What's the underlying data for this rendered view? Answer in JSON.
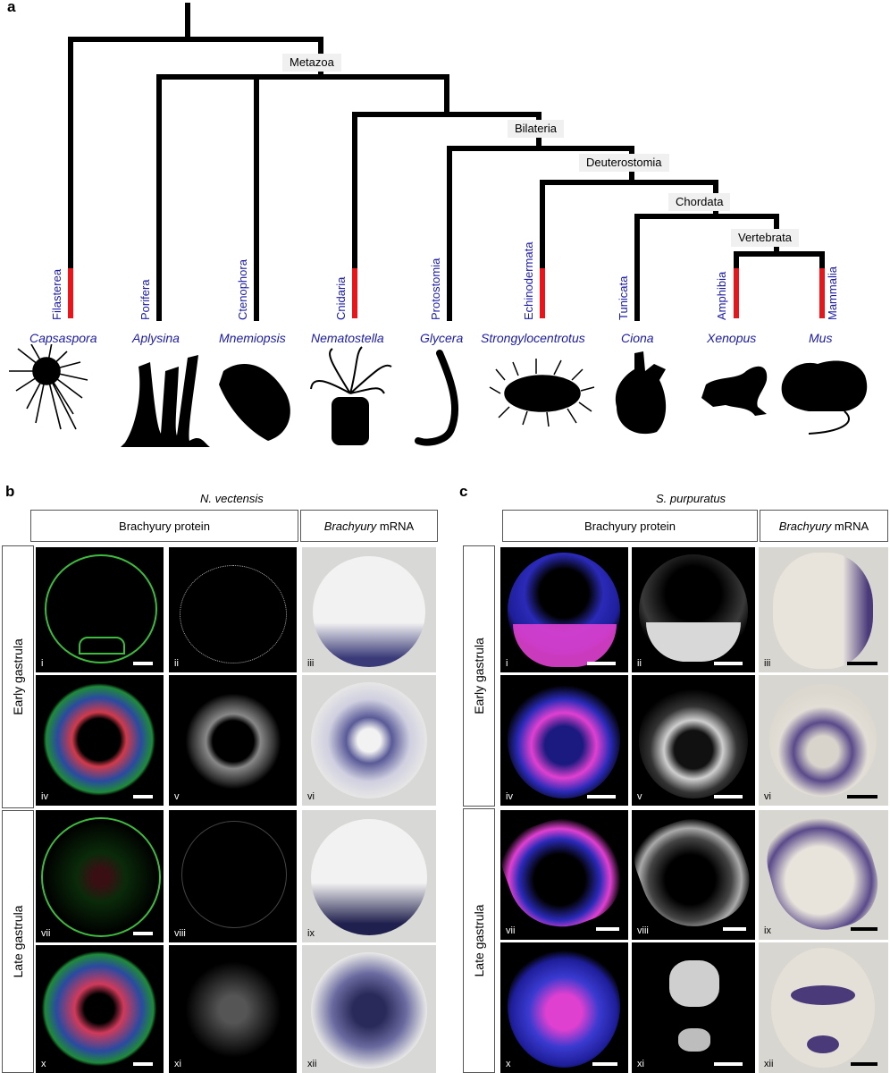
{
  "panel_a": {
    "letter": "a",
    "clades": [
      "Metazoa",
      "Bilateria",
      "Deuterostomia",
      "Chordata",
      "Vertebrata"
    ],
    "taxa": [
      {
        "group": "Filasterea",
        "genus": "Capsaspora",
        "icon": "capsaspora-silhouette"
      },
      {
        "group": "Porifera",
        "genus": "Aplysina",
        "icon": "sponge-silhouette"
      },
      {
        "group": "Ctenophora",
        "genus": "Mnemiopsis",
        "icon": "comb-jelly-silhouette"
      },
      {
        "group": "Cnidaria",
        "genus": "Nematostella",
        "icon": "sea-anemone-silhouette"
      },
      {
        "group": "Protostomia",
        "genus": "Glycera",
        "icon": "worm-silhouette"
      },
      {
        "group": "Echinodermata",
        "genus": "Strongylocentrotus",
        "icon": "sea-urchin-silhouette"
      },
      {
        "group": "Tunicata",
        "genus": "Ciona",
        "icon": "sea-squirt-silhouette"
      },
      {
        "group": "Amphibia",
        "genus": "Xenopus",
        "icon": "frog-silhouette"
      },
      {
        "group": "Mammalia",
        "genus": "Mus",
        "icon": "mouse-silhouette"
      }
    ]
  },
  "panel_b": {
    "letter": "b",
    "species": "N. vectensis",
    "protein_header": "Brachyury protein",
    "mrna_header_italic": "Brachyury",
    "mrna_header_rest": " mRNA",
    "row_groups": [
      "Early gastrula",
      "Late gastrula"
    ],
    "numerals": [
      "i",
      "ii",
      "iii",
      "iv",
      "v",
      "vi",
      "vii",
      "viii",
      "ix",
      "x",
      "xi",
      "xii"
    ]
  },
  "panel_c": {
    "letter": "c",
    "species": "S. purpuratus",
    "protein_header": "Brachyury protein",
    "mrna_header_italic": "Brachyury",
    "mrna_header_rest": " mRNA",
    "row_groups": [
      "Early gastrula",
      "Late gastrula"
    ],
    "numerals": [
      "i",
      "ii",
      "iii",
      "iv",
      "v",
      "vi",
      "vii",
      "viii",
      "ix",
      "x",
      "xi",
      "xii"
    ]
  },
  "colors": {
    "taxon_label": "#1a1aa8",
    "highlight_branch": "#e8161b",
    "tree": "#000000"
  }
}
